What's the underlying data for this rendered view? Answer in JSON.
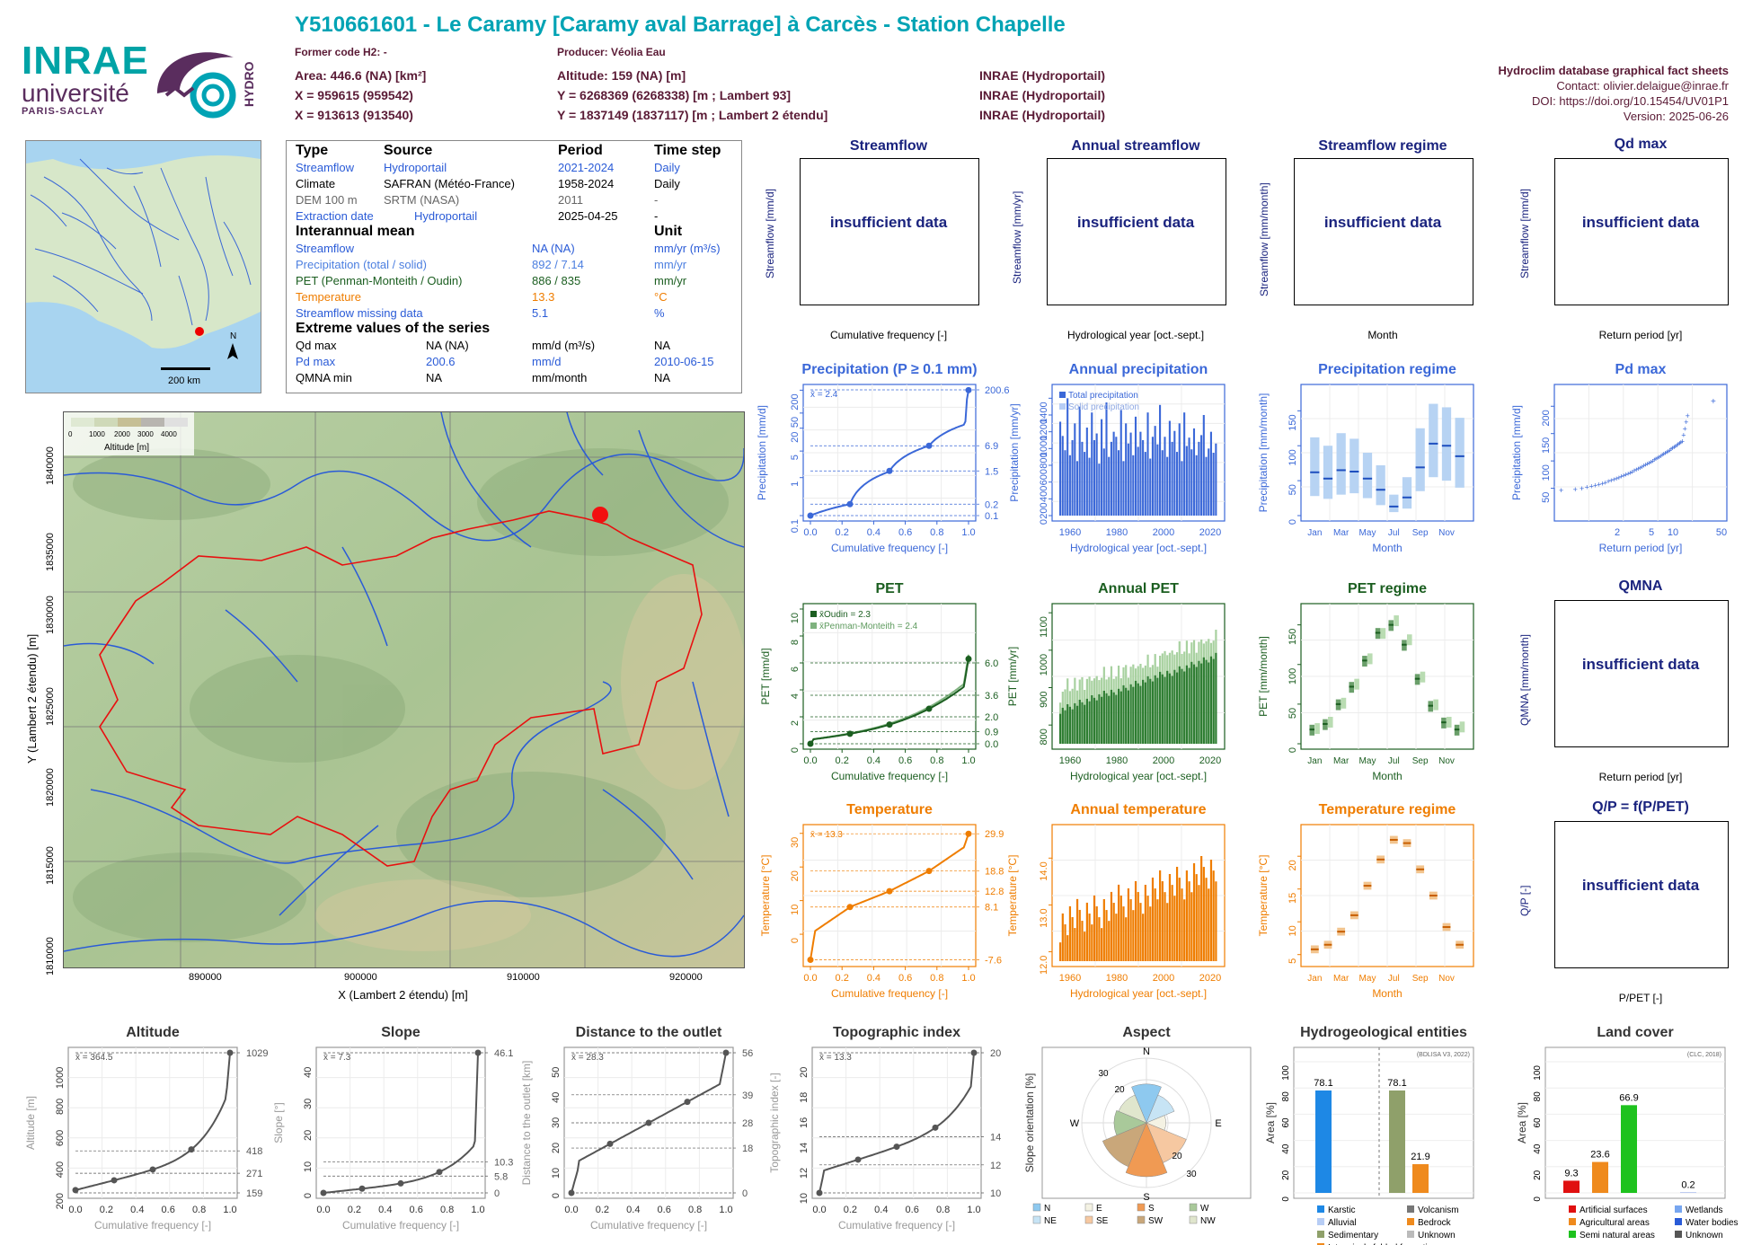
{
  "header": {
    "title": "Y510661601 - Le Caramy [Caramy aval Barrage] à Carcès - Station Chapelle",
    "former_code": "Former code H2: -",
    "producer": "Producer: Véolia Eau",
    "area": "Area: 446.6 (NA) [km²]",
    "altitude": "Altitude: 159 (NA) [m]",
    "x93": "X = 959615 (959542)",
    "y93": "Y = 6268369 (6268338) [m ; Lambert 93]",
    "x2e": "X = 913613 (913540)",
    "y2e": "Y = 1837149 (1837117) [m ; Lambert 2 étendu]",
    "src1": "INRAE (Hydroportail)",
    "src2": "INRAE (Hydroportail)",
    "src3": "INRAE (Hydroportail)",
    "logo_brand": "INRAE",
    "logo_univ": "université",
    "logo_ps": "PARIS-SACLAY",
    "logo_hydro": "HYDRO"
  },
  "rightinfo": {
    "title": "Hydroclim database graphical fact sheets",
    "contact": "Contact: olivier.delaigue@inrae.fr",
    "doi": "DOI: https://doi.org/10.15454/UV01P1",
    "version": "Version: 2025-06-26"
  },
  "infotable": {
    "h_type": "Type",
    "h_source": "Source",
    "h_period": "Period",
    "h_timestep": "Time step",
    "rows": [
      {
        "type": "Streamflow",
        "source": "Hydroportail",
        "period": "2021-2024",
        "step": "Daily"
      },
      {
        "type": "Climate",
        "source": "SAFRAN (Météo-France)",
        "period": "1958-2024",
        "step": "Daily"
      },
      {
        "type": "DEM 100 m",
        "source": "SRTM (NASA)",
        "period": "2011",
        "step": "-"
      },
      {
        "type": "Extraction date",
        "source": "Hydroportail",
        "period": "2025-04-25",
        "step": "-"
      }
    ],
    "h_inter": "Interannual mean",
    "h_unit": "Unit",
    "inter": [
      {
        "name": "Streamflow",
        "val": "NA (NA)",
        "unit": "mm/yr (m³/s)"
      },
      {
        "name": "Precipitation (total / solid)",
        "val": "892 / 7.14",
        "unit": "mm/yr"
      },
      {
        "name": "PET (Penman-Monteith / Oudin)",
        "val": "886 / 835",
        "unit": "mm/yr"
      },
      {
        "name": "Temperature",
        "val": "13.3",
        "unit": "°C"
      },
      {
        "name": "Streamflow missing data",
        "val": "5.1",
        "unit": "%"
      }
    ],
    "h_extreme": "Extreme values of the series",
    "extreme": [
      {
        "name": "Qd max",
        "val": "NA (NA)",
        "unit": "mm/d (m³/s)",
        "date": "NA"
      },
      {
        "name": "Pd max",
        "val": "200.6",
        "unit": "mm/d",
        "date": "2010-06-15"
      },
      {
        "name": "QMNA min",
        "val": "NA",
        "unit": "mm/month",
        "date": "NA"
      }
    ]
  },
  "minimap": {
    "scale": "200 km",
    "north": "N"
  },
  "bigmap": {
    "legend_title": "Altitude [m]",
    "legend_ticks": [
      "0",
      "1000",
      "2000",
      "3000",
      "4000"
    ],
    "xlabel": "X (Lambert 2 étendu) [m]",
    "ylabel": "Y (Lambert 2 étendu) [m]",
    "xticks": [
      "890000",
      "900000",
      "910000",
      "920000"
    ],
    "yticks": [
      "1840000",
      "1835000",
      "1830000",
      "1825000",
      "1820000",
      "1815000",
      "1810000"
    ]
  },
  "panels": {
    "streamflow": {
      "title": "Streamflow",
      "ylabel": "Streamflow [mm/d]",
      "xlabel": "Cumulative frequency [-]",
      "msg": "insufficient data"
    },
    "annual_streamflow": {
      "title": "Annual streamflow",
      "ylabel": "Streamflow [mm/yr]",
      "xlabel": "Hydrological year [oct.-sept.]",
      "msg": "insufficient data"
    },
    "streamflow_regime": {
      "title": "Streamflow regime",
      "ylabel": "Streamflow [mm/month]",
      "xlabel": "Month",
      "msg": "insufficient data"
    },
    "qd_max": {
      "title": "Qd max",
      "ylabel": "Streamflow [mm/d]",
      "xlabel": "Return period [yr]",
      "msg": "insufficient data"
    },
    "qmna": {
      "title": "QMNA",
      "ylabel": "QMNA [mm/month]",
      "xlabel": "Return period [yr]",
      "msg": "insufficient data"
    },
    "qp": {
      "title": "Q/P = f(P/PET)",
      "ylabel": "Q/P [-]",
      "xlabel": "P/PET [-]",
      "msg": "insufficient data"
    }
  },
  "colors": {
    "blue": "#2a5bd7",
    "blue_dark": "#1a237e",
    "green": "#1b5e20",
    "orange": "#ef7d00",
    "grey": "#555555"
  },
  "chart_data": [
    {
      "id": "precip_cdf",
      "type": "line",
      "title": "Precipitation (P ≥ 0.1 mm)",
      "xlabel": "Cumulative frequency [-]",
      "ylabel": "Precipitation [mm/d]",
      "mean_label": "x̄ = 2.4",
      "right_labels": [
        "200.6",
        "6.9",
        "1.5",
        "0.2",
        "0.1"
      ],
      "yticks": [
        "0.1",
        "1",
        "5",
        "20",
        "50",
        "200"
      ],
      "xticks": [
        "0.0",
        "0.2",
        "0.4",
        "0.6",
        "0.8",
        "1.0"
      ]
    },
    {
      "id": "annual_precip",
      "type": "bar",
      "title": "Annual precipitation",
      "xlabel": "Hydrological year [oct.-sept.]",
      "ylabel": "Precipitation [mm/yr]",
      "legend": [
        "Total precipitation",
        "Solid precipitation"
      ],
      "xticks": [
        "1960",
        "1980",
        "2000",
        "2020"
      ],
      "yticks": [
        "0",
        "200",
        "400",
        "600",
        "800",
        "1000",
        "1200",
        "1400"
      ],
      "ylim": [
        0,
        1500
      ]
    },
    {
      "id": "precip_regime",
      "type": "bar",
      "title": "Precipitation regime",
      "xlabel": "Month",
      "ylabel": "Precipitation [mm/month]",
      "categories": [
        "Jan",
        "Feb",
        "Mar",
        "Apr",
        "May",
        "Jun",
        "Jul",
        "Aug",
        "Sep",
        "Oct",
        "Nov",
        "Dec"
      ],
      "xticks": [
        "Jan",
        "Mar",
        "May",
        "Jul",
        "Sep",
        "Nov"
      ],
      "median": [
        62,
        53,
        65,
        63,
        53,
        37,
        13,
        26,
        69,
        103,
        100,
        85
      ],
      "q_low": [
        28,
        24,
        30,
        32,
        25,
        15,
        5,
        10,
        35,
        55,
        50,
        40
      ],
      "q_high": [
        112,
        100,
        118,
        110,
        90,
        72,
        30,
        55,
        125,
        160,
        155,
        140
      ],
      "yticks": [
        "0",
        "50",
        "100",
        "150"
      ],
      "ylim": [
        0,
        180
      ]
    },
    {
      "id": "pd_max",
      "type": "scatter",
      "title": "Pd max",
      "xlabel": "Return period [yr]",
      "ylabel": "Precipitation [mm/d]",
      "xticks": [
        "2",
        "5",
        "10",
        "50"
      ],
      "yticks": [
        "50",
        "100",
        "150",
        "200"
      ],
      "max_point": 200.6
    },
    {
      "id": "pet_cdf",
      "type": "line",
      "title": "PET",
      "xlabel": "Cumulative frequency [-]",
      "ylabel": "PET [mm/d]",
      "legend": [
        "x̄Oudin = 2.3",
        "x̄Penman-Monteith = 2.4"
      ],
      "right_labels": [
        "6.0",
        "3.6",
        "2.0",
        "0.9",
        "0.0"
      ],
      "yticks": [
        "0",
        "2",
        "4",
        "6",
        "8",
        "10"
      ],
      "xticks": [
        "0.0",
        "0.2",
        "0.4",
        "0.6",
        "0.8",
        "1.0"
      ]
    },
    {
      "id": "annual_pet",
      "type": "bar",
      "title": "Annual PET",
      "xlabel": "Hydrological year [oct.-sept.]",
      "ylabel": "PET [mm/yr]",
      "xticks": [
        "1960",
        "1980",
        "2000",
        "2020"
      ],
      "yticks": [
        "800",
        "900",
        "1000",
        "1100"
      ],
      "ylim": [
        750,
        1110
      ]
    },
    {
      "id": "pet_regime",
      "type": "box",
      "title": "PET regime",
      "xlabel": "Month",
      "ylabel": "PET [mm/month]",
      "categories": [
        "Jan",
        "Feb",
        "Mar",
        "Apr",
        "May",
        "Jun",
        "Jul",
        "Aug",
        "Sep",
        "Oct",
        "Nov",
        "Dec"
      ],
      "xticks": [
        "Jan",
        "Mar",
        "May",
        "Jul",
        "Sep",
        "Nov"
      ],
      "oudin": [
        18,
        25,
        50,
        72,
        105,
        140,
        150,
        125,
        82,
        48,
        27,
        18
      ],
      "pm": [
        20,
        28,
        52,
        76,
        108,
        140,
        156,
        132,
        85,
        50,
        28,
        22
      ],
      "yticks": [
        "0",
        "50",
        "100",
        "150"
      ],
      "ylim": [
        0,
        170
      ]
    },
    {
      "id": "temp_cdf",
      "type": "line",
      "title": "Temperature",
      "xlabel": "Cumulative frequency [-]",
      "ylabel": "Temperature [°C]",
      "mean_label": "x̄ = 13.3",
      "right_labels": [
        "29.9",
        "18.8",
        "12.8",
        "8.1",
        "-7.6"
      ],
      "yticks": [
        "0",
        "10",
        "20",
        "30"
      ],
      "xticks": [
        "0.0",
        "0.2",
        "0.4",
        "0.6",
        "0.8",
        "1.0"
      ]
    },
    {
      "id": "annual_temp",
      "type": "bar",
      "title": "Annual temperature",
      "xlabel": "Hydrological year [oct.-sept.]",
      "ylabel": "Temperature [°C]",
      "xticks": [
        "1960",
        "1980",
        "2000",
        "2020"
      ],
      "yticks": [
        "12.0",
        "13.0",
        "14.0"
      ],
      "ylim": [
        11.8,
        14.6
      ]
    },
    {
      "id": "temp_regime",
      "type": "box",
      "title": "Temperature regime",
      "xlabel": "Month",
      "ylabel": "Temperature [°C]",
      "categories": [
        "Jan",
        "Feb",
        "Mar",
        "Apr",
        "May",
        "Jun",
        "Jul",
        "Aug",
        "Sep",
        "Oct",
        "Nov",
        "Dec"
      ],
      "xticks": [
        "Jan",
        "Mar",
        "May",
        "Jul",
        "Sep",
        "Nov"
      ],
      "values": [
        5.8,
        6.5,
        8.5,
        11,
        15.5,
        19.5,
        22.5,
        22,
        18,
        14,
        9.2,
        6.5
      ],
      "yticks": [
        "5",
        "10",
        "15",
        "20"
      ],
      "ylim": [
        4,
        24
      ]
    },
    {
      "id": "altitude",
      "type": "line",
      "title": "Altitude",
      "xlabel": "Cumulative frequency [-]",
      "ylabel": "Altitude [m]",
      "mean_label": "x̄ = 364.5",
      "right_labels": [
        "1029",
        "418",
        "271",
        "159"
      ],
      "yticks": [
        "200",
        "400",
        "600",
        "800",
        "1000"
      ],
      "xticks": [
        "0.0",
        "0.2",
        "0.4",
        "0.6",
        "0.8",
        "1.0"
      ]
    },
    {
      "id": "slope",
      "type": "line",
      "title": "Slope",
      "xlabel": "Cumulative frequency [-]",
      "ylabel": "Slope [°]",
      "mean_label": "x̄ = 7.3",
      "right_labels": [
        "46.1",
        "10.3",
        "5.8",
        "0"
      ],
      "yticks": [
        "0",
        "10",
        "20",
        "30",
        "40"
      ],
      "xticks": [
        "0.0",
        "0.2",
        "0.4",
        "0.6",
        "0.8",
        "1.0"
      ]
    },
    {
      "id": "distance",
      "type": "line",
      "title": "Distance to the outlet",
      "xlabel": "Cumulative frequency [-]",
      "ylabel": "Distance to the outlet [km]",
      "mean_label": "x̄ = 28.3",
      "right_labels": [
        "56",
        "39",
        "28",
        "18",
        "0"
      ],
      "yticks": [
        "0",
        "10",
        "20",
        "30",
        "40",
        "50"
      ],
      "xticks": [
        "0.0",
        "0.2",
        "0.4",
        "0.6",
        "0.8",
        "1.0"
      ]
    },
    {
      "id": "topo",
      "type": "line",
      "title": "Topographic index",
      "xlabel": "Cumulative frequency [-]",
      "ylabel": "Topographic index [-]",
      "mean_label": "x̄ = 13.3",
      "right_labels": [
        "20",
        "14",
        "12",
        "10"
      ],
      "yticks": [
        "10",
        "12",
        "14",
        "16",
        "18",
        "20"
      ],
      "xticks": [
        "0.0",
        "0.2",
        "0.4",
        "0.6",
        "0.8",
        "1.0"
      ]
    },
    {
      "id": "aspect",
      "type": "pie",
      "title": "Aspect",
      "ylabel": "Slope orientation [%]",
      "directions": [
        "N",
        "E",
        "S",
        "W"
      ],
      "rings": [
        "10",
        "20",
        "30"
      ],
      "legend": [
        "N",
        "E",
        "S",
        "W",
        "NE",
        "SE",
        "SW",
        "NW"
      ],
      "values": {
        "N": 18,
        "NE": 14,
        "E": 9,
        "SE": 20,
        "S": 25,
        "SW": 22,
        "W": 15,
        "NW": 14
      }
    },
    {
      "id": "hydrogeo",
      "type": "bar",
      "title": "Hydrogeological entities",
      "ylabel": "Area [%]",
      "note": "(BDLISA V3, 2022)",
      "values": [
        {
          "name": "Karstic",
          "value": 78.1,
          "color": "#1e88e5"
        },
        {
          "name": "Sedimentary",
          "value": 78.1,
          "color": "#8fa06a"
        },
        {
          "name": "Intensively folded formation",
          "value": 21.9,
          "color": "#ef8a1d"
        }
      ],
      "labels": [
        "78.1",
        "78.1",
        "21.9"
      ],
      "legend": [
        "Karstic",
        "Volcanism",
        "Alluvial",
        "Bedrock",
        "Sedimentary",
        "Unknown",
        "Intensively folded formation"
      ],
      "yticks": [
        "0",
        "20",
        "40",
        "60",
        "80",
        "100"
      ],
      "ylim": [
        0,
        100
      ]
    },
    {
      "id": "landcover",
      "type": "bar",
      "title": "Land cover",
      "ylabel": "Area [%]",
      "note": "(CLC, 2018)",
      "values": [
        {
          "name": "Artificial surfaces",
          "value": 9.3,
          "color": "#e01010"
        },
        {
          "name": "Agricultural areas",
          "value": 23.6,
          "color": "#ef8a1d"
        },
        {
          "name": "Semi natural areas",
          "value": 66.9,
          "color": "#1ec21e"
        },
        {
          "name": "Water bodies",
          "value": 0.2,
          "color": "#2a5bd7"
        }
      ],
      "labels": [
        "9.3",
        "23.6",
        "66.9",
        "0.2"
      ],
      "legend": [
        "Artificial surfaces",
        "Wetlands",
        "Agricultural areas",
        "Water bodies",
        "Semi natural areas",
        "Unknown"
      ],
      "yticks": [
        "0",
        "20",
        "40",
        "60",
        "80",
        "100"
      ],
      "ylim": [
        0,
        100
      ]
    }
  ]
}
